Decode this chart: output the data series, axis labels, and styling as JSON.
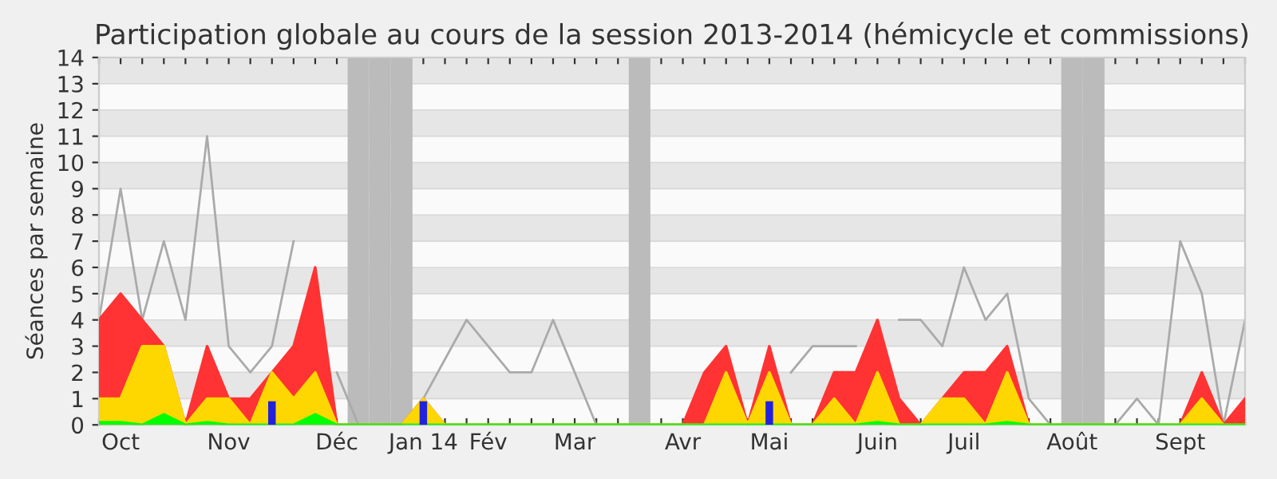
{
  "chart_data": {
    "type": "area",
    "title": "Participation globale au cours de la session 2013-2014 (hémicycle et commissions)",
    "ylabel": "Séances par semaine",
    "categories": [
      null,
      "Oct",
      null,
      null,
      null,
      null,
      "Nov",
      null,
      null,
      null,
      null,
      "Déc",
      null,
      null,
      null,
      "Jan 14",
      null,
      null,
      "Fév",
      null,
      null,
      null,
      "Mar",
      null,
      null,
      null,
      null,
      "Avr",
      null,
      null,
      null,
      "Mai",
      null,
      null,
      null,
      null,
      "Juin",
      null,
      null,
      null,
      "Juil",
      null,
      null,
      null,
      null,
      "Août",
      null,
      null,
      null,
      null,
      "Sept",
      null,
      null,
      null
    ],
    "series": [
      {
        "type": "line",
        "color": "#aaaaaa",
        "values": [
          4,
          9,
          4,
          7,
          4,
          11,
          3,
          2,
          3,
          7,
          null,
          2,
          0,
          0,
          0,
          1,
          2.5,
          4,
          3,
          2,
          2,
          4,
          2,
          0,
          0,
          0,
          0,
          0,
          0,
          0,
          0,
          null,
          2,
          3,
          3,
          3,
          null,
          4,
          4,
          3,
          6,
          4,
          5,
          1,
          0,
          0,
          0,
          0,
          1,
          0,
          7,
          5,
          0,
          4
        ]
      },
      {
        "color": "#ff3333",
        "values": [
          4,
          5,
          4,
          3,
          0,
          3,
          1,
          1,
          2,
          3,
          6,
          0,
          0,
          0,
          0,
          1,
          0,
          0,
          0,
          0,
          0,
          0,
          0,
          0,
          0,
          0,
          0,
          0,
          2,
          3,
          0,
          3,
          0,
          0,
          2,
          2,
          4,
          1,
          0,
          1,
          2,
          2,
          3,
          0,
          0,
          0,
          0,
          0,
          0,
          0,
          0,
          2,
          0,
          1
        ]
      },
      {
        "color": "#ffd700",
        "values": [
          1,
          1,
          3,
          3,
          0,
          1,
          1,
          0,
          2,
          1,
          2,
          0,
          0,
          0,
          0,
          1,
          0,
          0,
          0,
          0,
          0,
          0,
          0,
          0,
          0,
          0,
          0,
          0,
          0,
          2,
          0,
          2,
          0,
          0,
          1,
          0,
          2,
          0,
          0,
          1,
          1,
          0,
          2,
          0,
          0,
          0,
          0,
          0,
          0,
          0,
          0,
          1,
          0,
          0
        ]
      },
      {
        "color": "#00ff00",
        "values": [
          0.1,
          0.1,
          0,
          0.4,
          0,
          0.1,
          0,
          0,
          0,
          0,
          0.4,
          0,
          0,
          0,
          0,
          0,
          0,
          0,
          0,
          0,
          0,
          0,
          0,
          0,
          0,
          0,
          0,
          0,
          0,
          0,
          0,
          0,
          0,
          0,
          0,
          0,
          0.1,
          0,
          0,
          0,
          0,
          0,
          0.1,
          0,
          0,
          0,
          0,
          0,
          0,
          0,
          0,
          0,
          0,
          0
        ]
      },
      {
        "type": "bar",
        "color": "#2222dd",
        "values": [
          0,
          0,
          0,
          0,
          0,
          0,
          0,
          0,
          0.9,
          0,
          0,
          0,
          0,
          0,
          0,
          0.9,
          0,
          0,
          0,
          0,
          0,
          0,
          0,
          0,
          0,
          0,
          0,
          0,
          0,
          0,
          0,
          0.9,
          0,
          0,
          0,
          0,
          0,
          0,
          0,
          0,
          0,
          0,
          0,
          0,
          0,
          0,
          0,
          0,
          0,
          0,
          0,
          0,
          0,
          0
        ]
      }
    ],
    "ylim": [
      0,
      14
    ],
    "yticks": [
      0,
      1,
      2,
      3,
      4,
      5,
      6,
      7,
      8,
      9,
      10,
      11,
      12,
      13,
      14
    ],
    "grid": "y",
    "legend": false
  }
}
